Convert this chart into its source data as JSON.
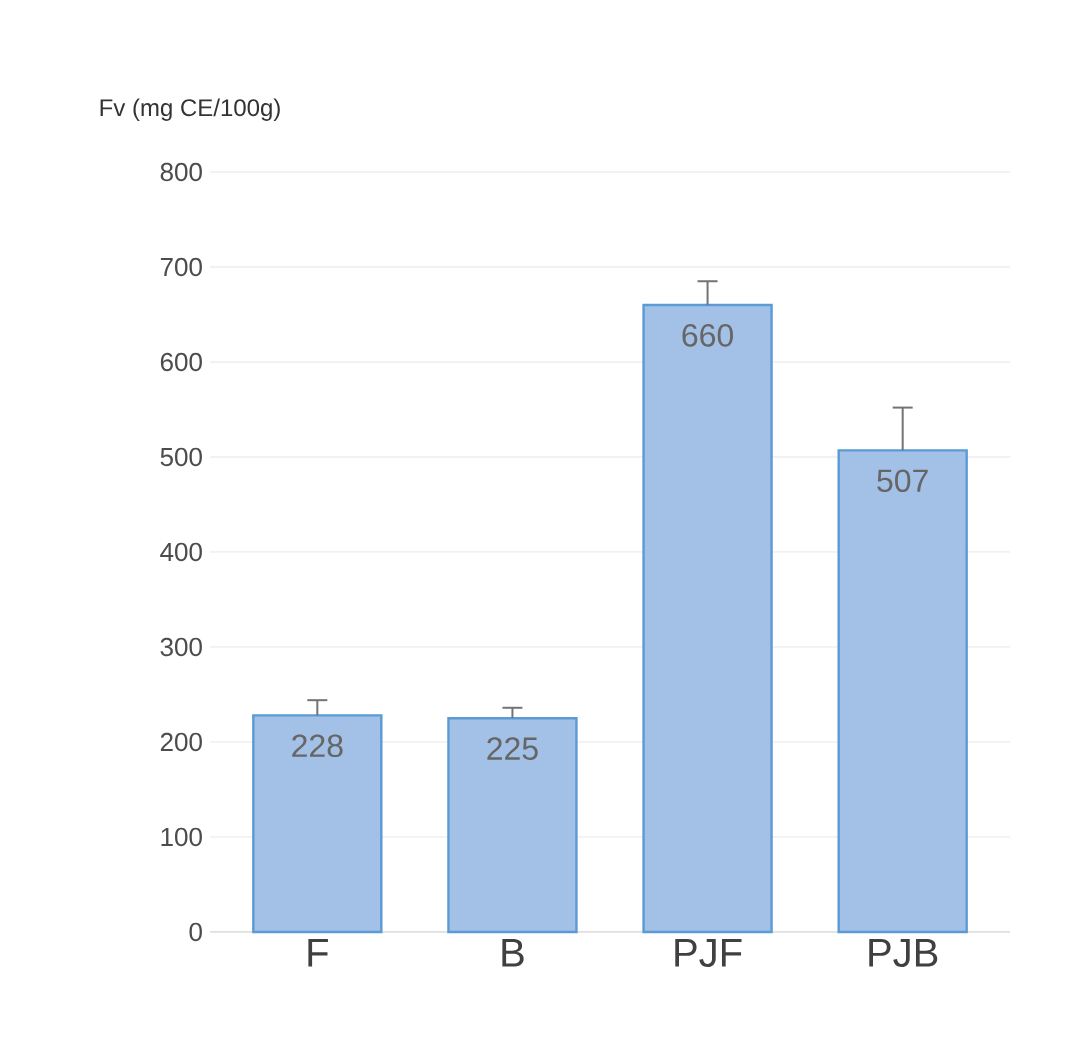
{
  "chart_data": {
    "type": "bar",
    "ylabel": "Fv (mg CE/100g)",
    "categories": [
      "F",
      "B",
      "PJF",
      "PJB"
    ],
    "values": [
      228,
      225,
      660,
      507
    ],
    "errors": [
      [
        228,
        244
      ],
      [
        225,
        236
      ],
      [
        660,
        685
      ],
      [
        507,
        552
      ]
    ],
    "color": "#a3c1e6",
    "ylim": [
      0,
      800
    ],
    "yticks": [
      0,
      100,
      200,
      300,
      400,
      500,
      600,
      700,
      800
    ],
    "grid": "y",
    "data_labels": true
  }
}
